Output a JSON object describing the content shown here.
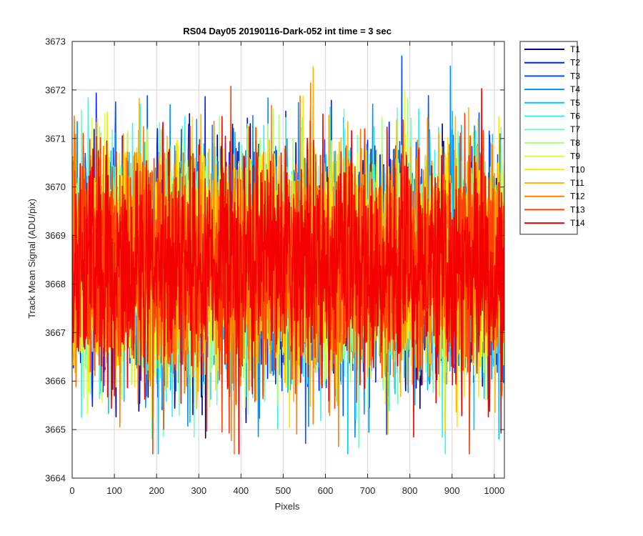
{
  "chart_data": {
    "type": "line",
    "title": "RS04 Day05 20190116-Dark-052 int time = 3 sec",
    "xlabel": "Pixels",
    "ylabel": "Track Mean Signal (ADU/pix)",
    "xlim": [
      0,
      1024
    ],
    "ylim": [
      3664,
      3673
    ],
    "xticks": [
      0,
      100,
      200,
      300,
      400,
      500,
      600,
      700,
      800,
      900,
      1000
    ],
    "yticks": [
      3664,
      3665,
      3666,
      3667,
      3668,
      3669,
      3670,
      3671,
      3672,
      3673
    ],
    "grid": true,
    "legend_placement": "outside-right",
    "noise_model": {
      "n_points_per_series": 1024,
      "mean": 3668.4,
      "typical_range": [
        3666.0,
        3671.0
      ],
      "extreme_range": [
        3664.5,
        3672.7
      ]
    },
    "series": [
      {
        "name": "T1",
        "color": "#00008F"
      },
      {
        "name": "T2",
        "color": "#0020FF"
      },
      {
        "name": "T3",
        "color": "#0050FF"
      },
      {
        "name": "T4",
        "color": "#0090FF"
      },
      {
        "name": "T5",
        "color": "#00C8FF"
      },
      {
        "name": "T6",
        "color": "#30F5F0"
      },
      {
        "name": "T7",
        "color": "#70FFC0"
      },
      {
        "name": "T8",
        "color": "#A8FF80"
      },
      {
        "name": "T9",
        "color": "#D8FF40"
      },
      {
        "name": "T10",
        "color": "#FFE800"
      },
      {
        "name": "T11",
        "color": "#FFB800"
      },
      {
        "name": "T12",
        "color": "#FF8000"
      },
      {
        "name": "T13",
        "color": "#FF4000"
      },
      {
        "name": "T14",
        "color": "#F50000"
      }
    ]
  }
}
